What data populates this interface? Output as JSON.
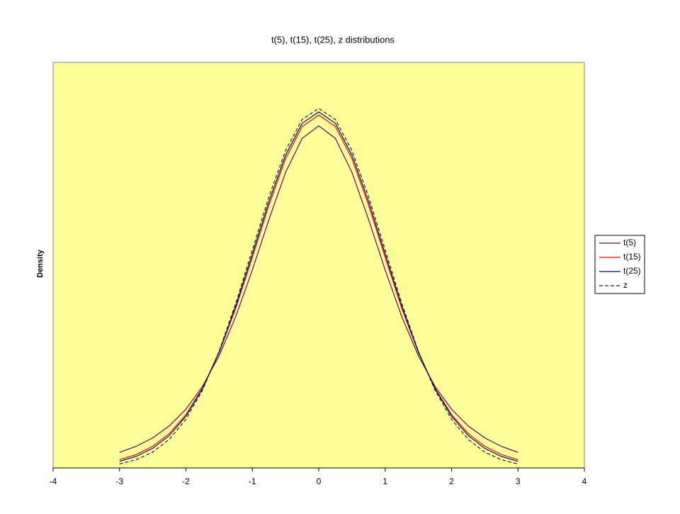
{
  "chart_data": {
    "type": "line",
    "title": "t(5), t(15), t(25), z distributions",
    "y_label": "Density",
    "x": [
      -3,
      -2.75,
      -2.5,
      -2.25,
      -2,
      -1.75,
      -1.5,
      -1.25,
      -1,
      -0.75,
      -0.5,
      -0.25,
      0,
      0.25,
      0.5,
      0.75,
      1,
      1.25,
      1.5,
      1.75,
      2,
      2.25,
      2.5,
      2.75,
      3
    ],
    "series": [
      {
        "name": "t(5)",
        "color": "#660066",
        "dashed": false,
        "values": [
          0.0173,
          0.0239,
          0.0333,
          0.0466,
          0.0651,
          0.0905,
          0.1245,
          0.1679,
          0.2197,
          0.2757,
          0.3279,
          0.3657,
          0.3796,
          0.3657,
          0.3279,
          0.2757,
          0.2197,
          0.1679,
          0.1245,
          0.0905,
          0.0651,
          0.0466,
          0.0333,
          0.0239,
          0.0173
        ]
      },
      {
        "name": "t(15)",
        "color": "#ff0000",
        "dashed": false,
        "values": [
          0.0091,
          0.0149,
          0.0241,
          0.0382,
          0.0591,
          0.0886,
          0.128,
          0.1772,
          0.2337,
          0.2917,
          0.3431,
          0.3788,
          0.3916,
          0.3788,
          0.3431,
          0.2917,
          0.2337,
          0.1772,
          0.128,
          0.0886,
          0.0591,
          0.0382,
          0.0241,
          0.0149,
          0.0091
        ]
      },
      {
        "name": "t(25)",
        "color": "#000099",
        "dashed": false,
        "values": [
          0.0073,
          0.0127,
          0.0217,
          0.0359,
          0.0574,
          0.0879,
          0.1288,
          0.1796,
          0.2372,
          0.2958,
          0.3471,
          0.3824,
          0.395,
          0.3824,
          0.3471,
          0.2958,
          0.2372,
          0.1796,
          0.1288,
          0.0879,
          0.0574,
          0.0359,
          0.0217,
          0.0127,
          0.0073
        ]
      },
      {
        "name": "z",
        "color": "#003300",
        "dashed": true,
        "values": [
          0.0044,
          0.0091,
          0.0175,
          0.0317,
          0.054,
          0.0863,
          0.1295,
          0.1826,
          0.242,
          0.3011,
          0.3521,
          0.3867,
          0.3989,
          0.3867,
          0.3521,
          0.3011,
          0.242,
          0.1826,
          0.1295,
          0.0863,
          0.054,
          0.0317,
          0.0175,
          0.0091,
          0.0044
        ]
      }
    ],
    "xlim": [
      -4,
      4
    ],
    "xticks": [
      -4,
      -3,
      -2,
      -1,
      0,
      1,
      2,
      3,
      4
    ],
    "ylim": [
      0,
      0.45
    ],
    "legend": "right",
    "plot_background": "#ffff99"
  }
}
